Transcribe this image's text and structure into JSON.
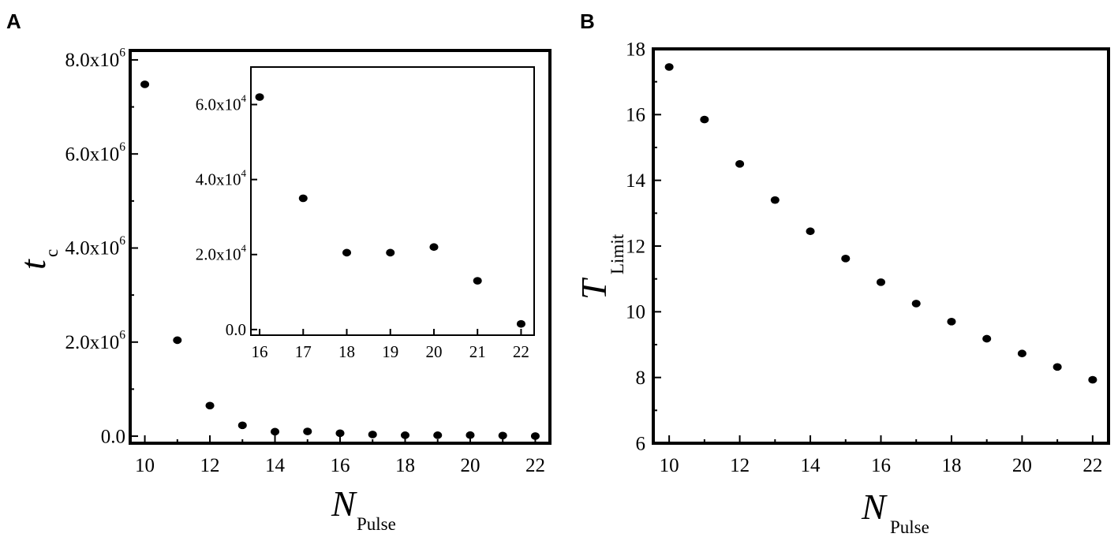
{
  "chart_data": [
    {
      "panel": "A",
      "type": "scatter",
      "xlabel": "N",
      "xlabel_sub": "Pulse",
      "ylabel": "t",
      "ylabel_sub": "c",
      "xlim": [
        9.55,
        22.45
      ],
      "ylim": [
        -150000,
        8200000
      ],
      "x_ticks": [
        10,
        12,
        14,
        16,
        18,
        20,
        22
      ],
      "x_tick_labels": [
        "10",
        "12",
        "14",
        "16",
        "18",
        "20",
        "22"
      ],
      "y_ticks": [
        0,
        2000000,
        4000000,
        6000000,
        8000000
      ],
      "y_tick_labels": [
        "0.0",
        "2.0x10",
        "4.0x10",
        "6.0x10",
        "8.0x10"
      ],
      "y_tick_exponents": [
        "",
        "6",
        "6",
        "6",
        "6"
      ],
      "x": [
        10,
        11,
        12,
        13,
        14,
        15,
        16,
        17,
        18,
        19,
        20,
        21,
        22
      ],
      "y": [
        7480000,
        2040000,
        650000,
        230000,
        95000,
        100000,
        62000,
        35000,
        20000,
        20000,
        22000,
        13000,
        1500
      ],
      "inset": {
        "type": "scatter",
        "xlim": [
          15.8,
          22.3
        ],
        "ylim": [
          -1500,
          70000
        ],
        "x_ticks": [
          16,
          17,
          18,
          19,
          20,
          21,
          22
        ],
        "x_tick_labels": [
          "16",
          "17",
          "18",
          "19",
          "20",
          "21",
          "22"
        ],
        "y_ticks": [
          0,
          20000,
          40000,
          60000
        ],
        "y_tick_labels": [
          "0.0",
          "2.0x10",
          "4.0x10",
          "6.0x10"
        ],
        "y_tick_exponents": [
          "",
          "4",
          "4",
          "4"
        ],
        "x": [
          16,
          17,
          18,
          19,
          20,
          21,
          22
        ],
        "y": [
          62000,
          35000,
          20500,
          20500,
          22000,
          13000,
          1500
        ]
      }
    },
    {
      "panel": "B",
      "type": "scatter",
      "xlabel": "N",
      "xlabel_sub": "Pulse",
      "ylabel": "T",
      "ylabel_sub": "Limit",
      "xlim": [
        9.55,
        22.45
      ],
      "ylim": [
        6,
        18
      ],
      "x_ticks": [
        10,
        12,
        14,
        16,
        18,
        20,
        22
      ],
      "x_tick_labels": [
        "10",
        "12",
        "14",
        "16",
        "18",
        "20",
        "22"
      ],
      "y_ticks": [
        6,
        8,
        10,
        12,
        14,
        16,
        18
      ],
      "y_tick_labels": [
        "6",
        "8",
        "10",
        "12",
        "14",
        "16",
        "18"
      ],
      "x": [
        10,
        11,
        12,
        13,
        14,
        15,
        16,
        17,
        18,
        19,
        20,
        21,
        22
      ],
      "y": [
        17.45,
        15.85,
        14.5,
        13.4,
        12.45,
        11.62,
        10.9,
        10.25,
        9.7,
        9.18,
        8.73,
        8.32,
        7.93
      ],
      "fit_color": "#e02020"
    }
  ]
}
